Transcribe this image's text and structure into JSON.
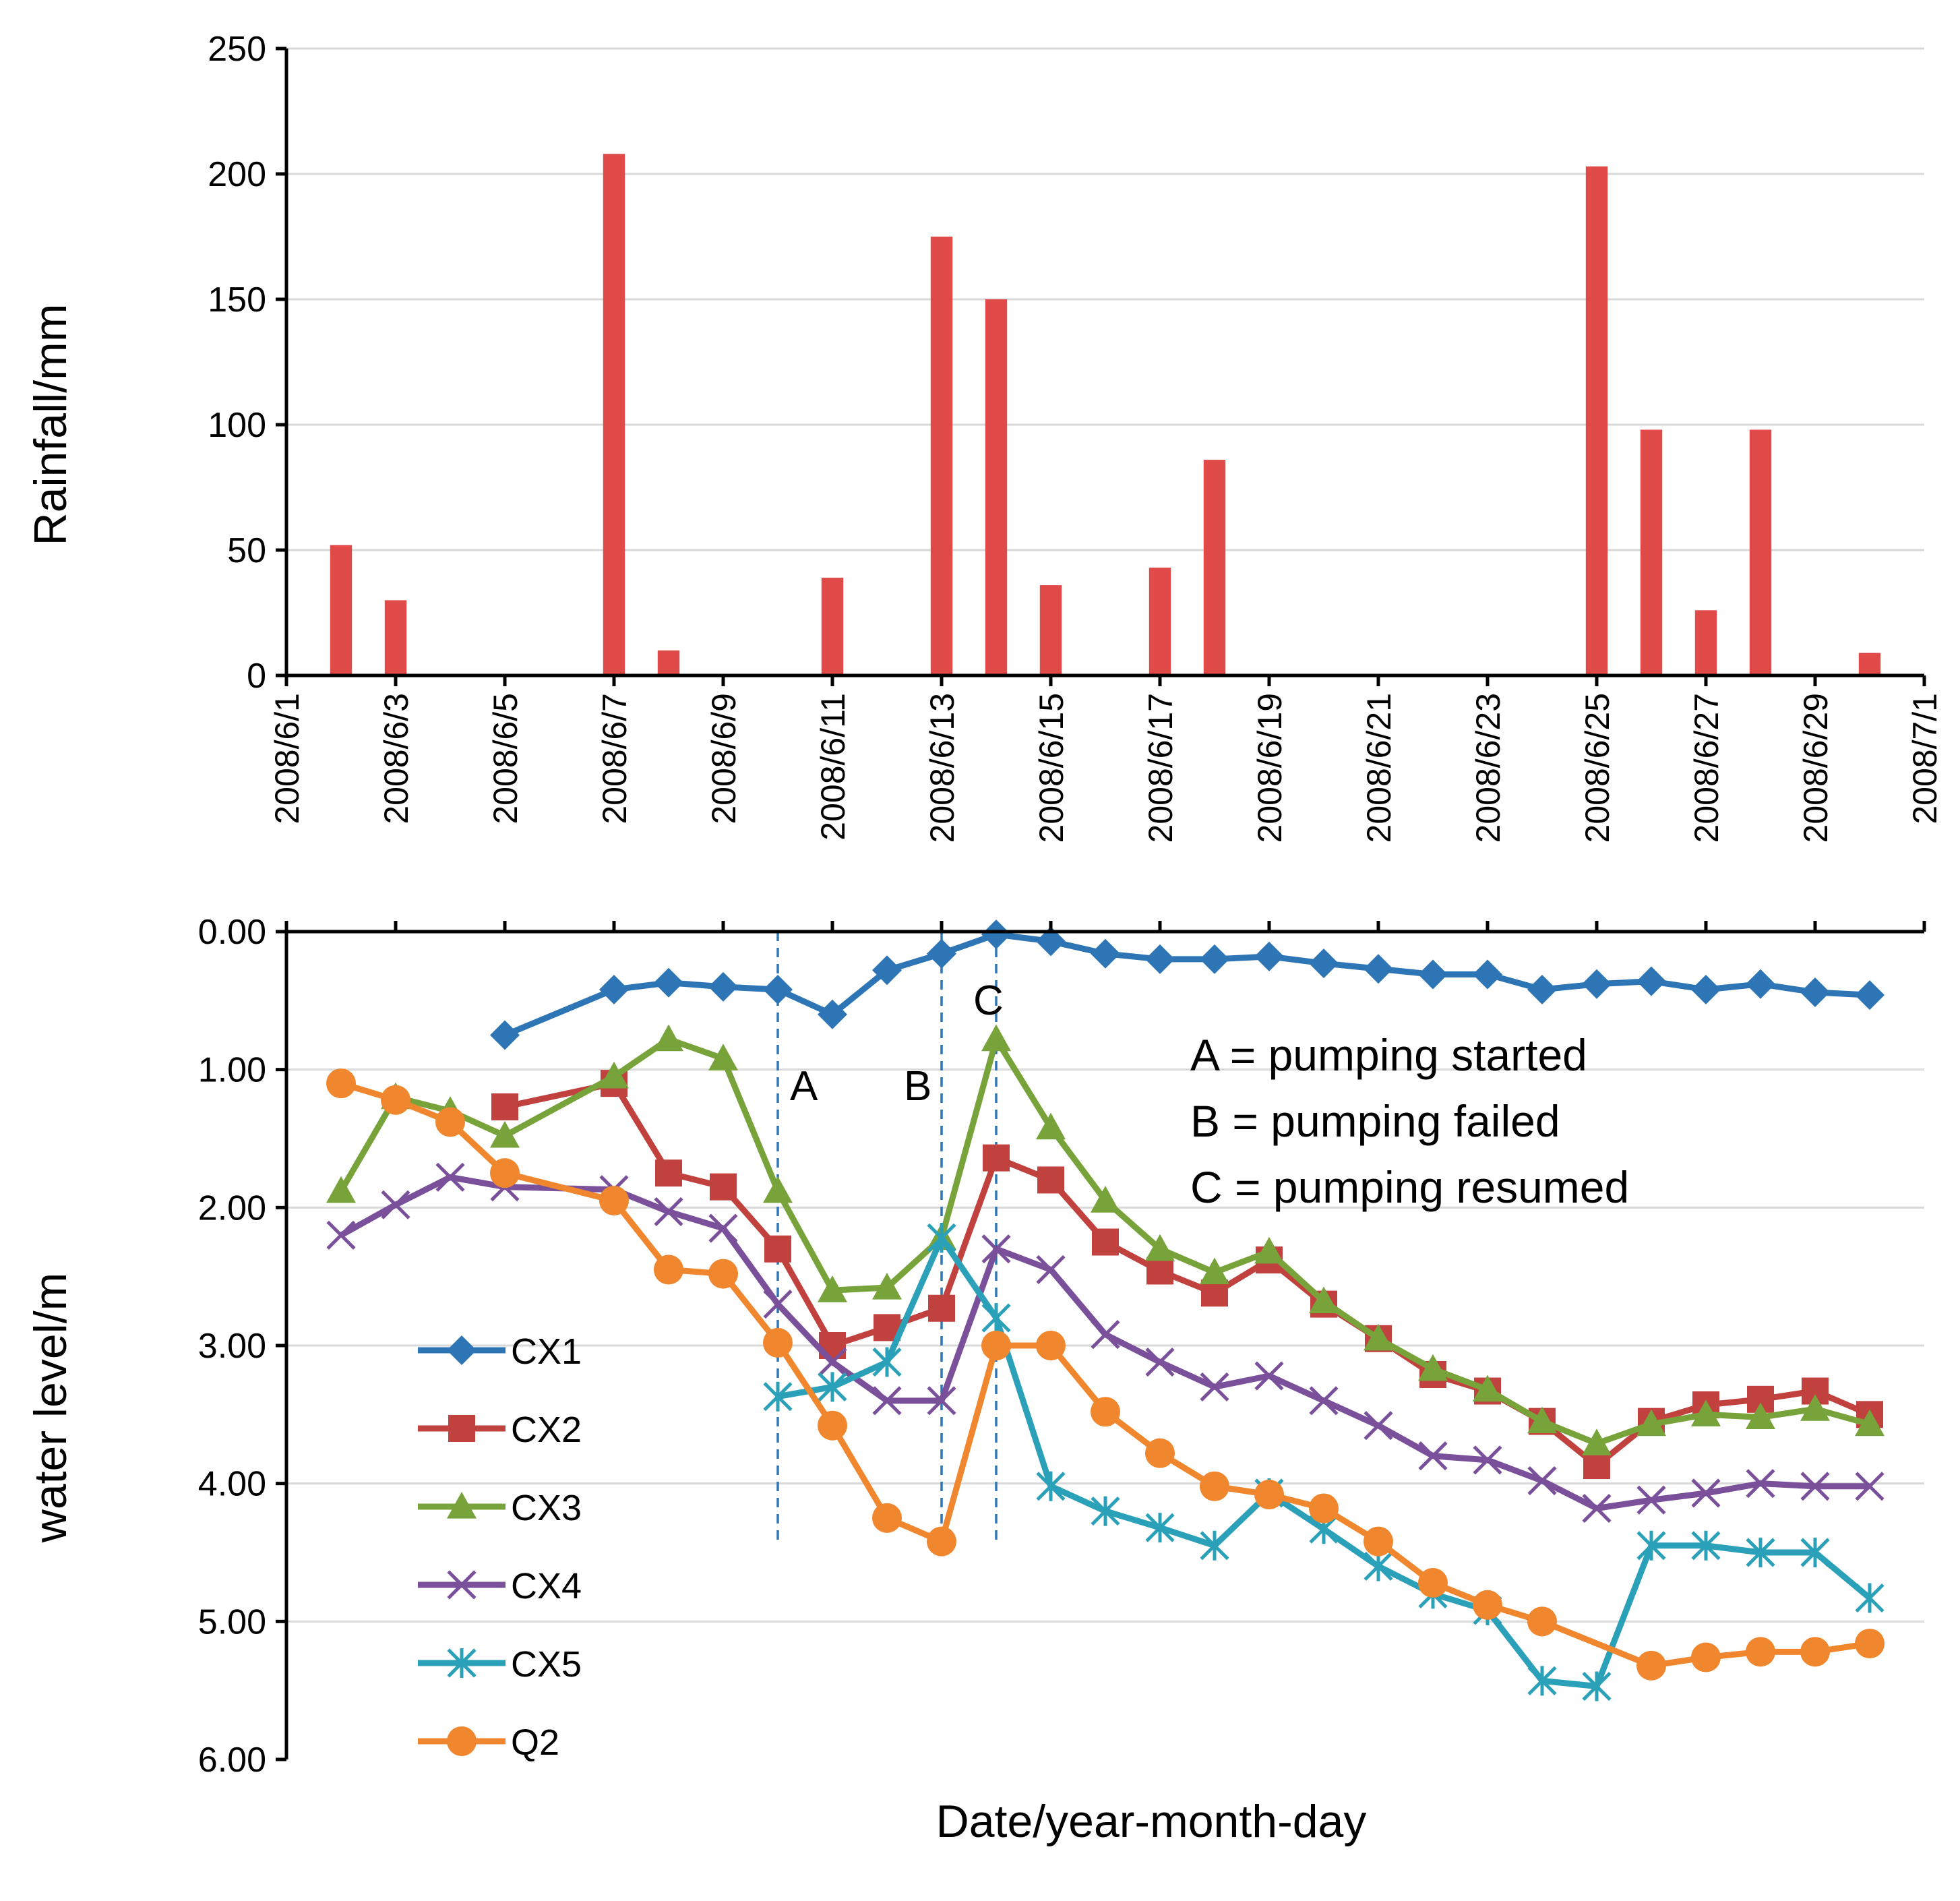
{
  "chart_data": [
    {
      "type": "bar",
      "title": "",
      "ylabel": "Rainfall/mm",
      "ylim": [
        0,
        250
      ],
      "yticks": [
        "0",
        "50",
        "100",
        "150",
        "200",
        "250"
      ],
      "series_color": "#e04b4a",
      "dates": [
        "2008/6/2",
        "2008/6/3",
        "2008/6/7",
        "2008/6/8",
        "2008/6/11",
        "2008/6/13",
        "2008/6/14",
        "2008/6/15",
        "2008/6/17",
        "2008/6/18",
        "2008/6/25",
        "2008/6/26",
        "2008/6/27",
        "2008/6/28",
        "2008/6/30"
      ],
      "day_index": [
        1,
        2,
        6,
        7,
        10,
        12,
        13,
        14,
        16,
        17,
        24,
        25,
        26,
        27,
        29
      ],
      "values": [
        52,
        30,
        208,
        10,
        39,
        175,
        150,
        36,
        43,
        86,
        203,
        98,
        26,
        98,
        9
      ]
    },
    {
      "type": "line",
      "xlabel": "Date/year-month-day",
      "ylabel": "water level/m",
      "ylim": [
        0,
        6
      ],
      "y_inverted": true,
      "yticks": [
        "0.00",
        "1.00",
        "2.00",
        "3.00",
        "4.00",
        "5.00",
        "6.00"
      ],
      "xticks": [
        "2008/6/1",
        "2008/6/3",
        "2008/6/5",
        "2008/6/7",
        "2008/6/9",
        "2008/6/11",
        "2008/6/13",
        "2008/6/15",
        "2008/6/17",
        "2008/6/19",
        "2008/6/21",
        "2008/6/23",
        "2008/6/25",
        "2008/6/27",
        "2008/6/29",
        "2008/7/1"
      ],
      "x_start": "2008/6/1",
      "x_days": 30,
      "series": [
        {
          "name": "CX1",
          "color": "#2e75b6",
          "marker": "diamond",
          "start_day": 4,
          "values": [
            0.75,
            null,
            0.42,
            0.37,
            0.4,
            0.42,
            0.6,
            0.28,
            0.16,
            0.02,
            0.07,
            0.16,
            0.2,
            0.2,
            0.18,
            0.23,
            0.27,
            0.31,
            0.31,
            0.42,
            0.38,
            0.36,
            0.42,
            0.38,
            0.44,
            0.46
          ]
        },
        {
          "name": "CX2",
          "color": "#c0413d",
          "marker": "square",
          "start_day": 4,
          "values": [
            1.27,
            null,
            1.1,
            1.75,
            1.85,
            2.3,
            3.0,
            2.87,
            2.73,
            1.64,
            1.8,
            2.25,
            2.46,
            2.62,
            2.38,
            2.7,
            2.95,
            3.21,
            3.33,
            3.55,
            3.87,
            3.55,
            3.43,
            3.39,
            3.33,
            3.5
          ]
        },
        {
          "name": "CX3",
          "color": "#77a33a",
          "marker": "triangle",
          "start_day": 1,
          "values": [
            1.88,
            1.2,
            1.3,
            1.48,
            null,
            1.05,
            0.78,
            0.92,
            1.88,
            2.6,
            2.58,
            2.22,
            0.78,
            1.42,
            1.95,
            2.3,
            2.47,
            2.32,
            2.68,
            2.95,
            3.17,
            3.32,
            3.55,
            3.71,
            3.57,
            3.5,
            3.52,
            3.46,
            3.57
          ]
        },
        {
          "name": "CX4",
          "color": "#7a509b",
          "marker": "x",
          "start_day": 1,
          "values": [
            2.2,
            1.98,
            1.78,
            1.85,
            null,
            1.87,
            2.03,
            2.15,
            2.7,
            3.12,
            3.4,
            3.4,
            2.3,
            2.45,
            2.92,
            3.12,
            3.3,
            3.22,
            3.4,
            3.58,
            3.8,
            3.83,
            3.98,
            4.18,
            4.12,
            4.07,
            4.0,
            4.02,
            4.02
          ]
        },
        {
          "name": "CX5",
          "color": "#2aa1b8",
          "marker": "star",
          "start_day": 9,
          "values": [
            3.37,
            3.3,
            3.12,
            2.22,
            2.8,
            4.02,
            4.2,
            4.32,
            4.45,
            4.07,
            4.33,
            4.6,
            4.8,
            4.92,
            5.43,
            5.47,
            4.45,
            4.45,
            4.5,
            4.5,
            4.83
          ]
        },
        {
          "name": "Q2",
          "color": "#f0862d",
          "marker": "circle",
          "start_day": 1,
          "values": [
            1.1,
            1.22,
            1.38,
            1.75,
            null,
            1.95,
            2.45,
            2.48,
            2.98,
            3.58,
            4.25,
            4.42,
            3.0,
            3.0,
            3.48,
            3.78,
            4.02,
            4.08,
            4.18,
            4.42,
            4.72,
            4.88,
            5.0,
            null,
            5.32,
            5.26,
            5.22,
            5.22,
            5.16
          ]
        }
      ],
      "events": [
        {
          "letter": "A",
          "day": 9,
          "meaning": "A = pumping started"
        },
        {
          "letter": "B",
          "day": 12,
          "meaning": "B = pumping failed"
        },
        {
          "letter": "C",
          "day": 13,
          "meaning": "C = pumping resumed"
        }
      ]
    }
  ]
}
